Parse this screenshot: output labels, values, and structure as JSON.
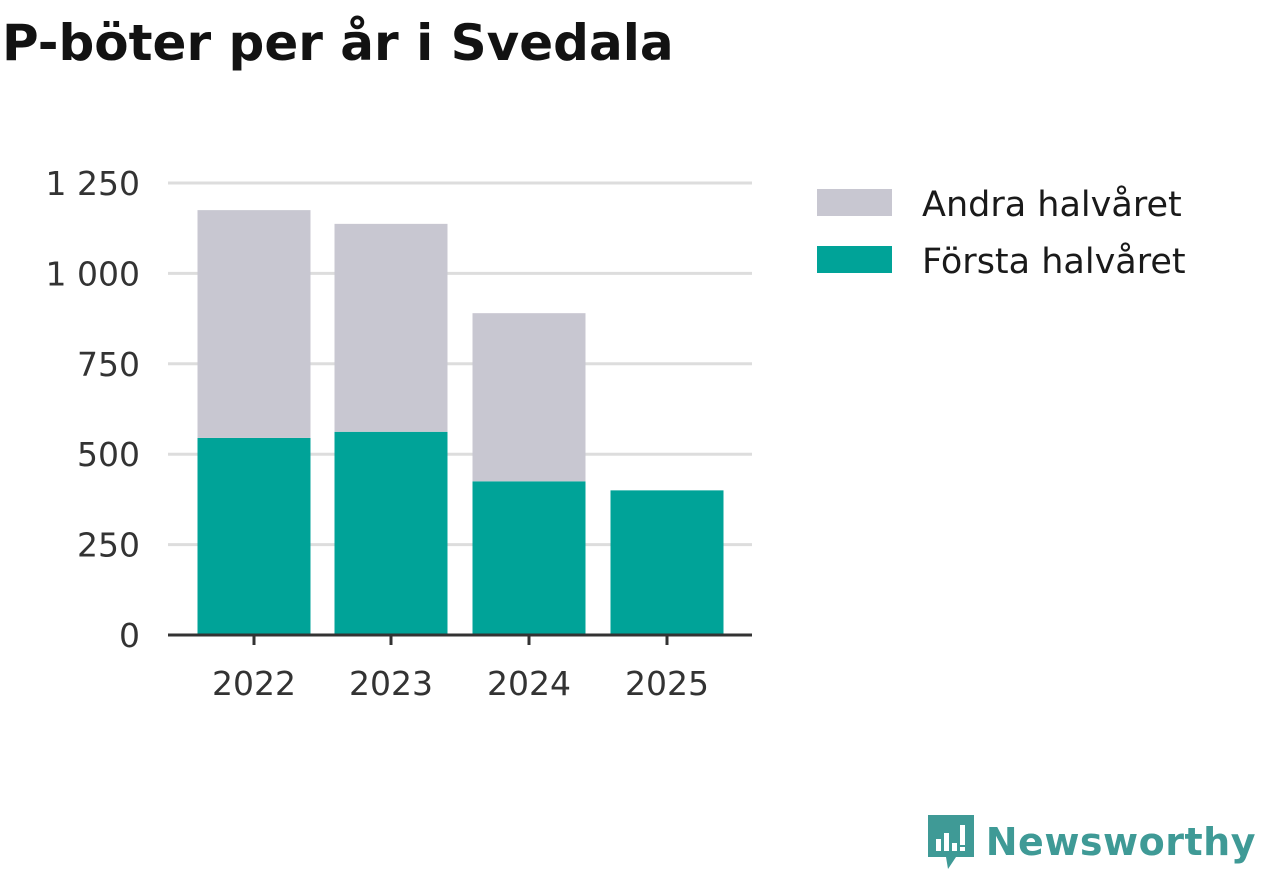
{
  "colors": {
    "first_half": "#00a398",
    "second_half": "#c8c7d1",
    "grid": "#dddddd",
    "axis": "#333333",
    "brand": "#3f9a96"
  },
  "chart_data": {
    "type": "bar",
    "stacked": true,
    "title": "P-böter per år i Svedala",
    "categories": [
      "2022",
      "2023",
      "2024",
      "2025"
    ],
    "series": [
      {
        "name": "Första halvåret",
        "values": [
          545,
          562,
          425,
          400
        ]
      },
      {
        "name": "Andra halvåret",
        "values": [
          630,
          575,
          465,
          0
        ]
      }
    ],
    "ylim": [
      0,
      1250
    ],
    "yticks": [
      0,
      250,
      500,
      750,
      1000,
      1250
    ],
    "ytick_labels": [
      "0",
      "250",
      "500",
      "750",
      "1 000",
      "1 250"
    ],
    "xlabel": "",
    "ylabel": "",
    "grid": true,
    "legend": {
      "position": "top-right",
      "items": [
        "Andra halvåret",
        "Första halvåret"
      ]
    }
  },
  "branding": {
    "name": "Newsworthy",
    "logo_icon": "newsworthy-logo-icon"
  }
}
